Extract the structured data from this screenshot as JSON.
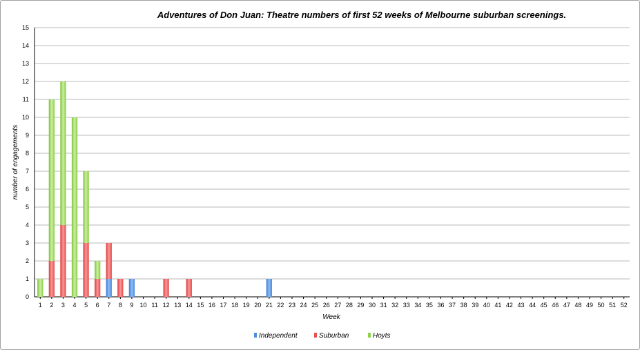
{
  "chart_data": {
    "type": "bar",
    "stacked": true,
    "title": "Adventures of Don Juan: Theatre numbers of first 52 weeks of Melbourne suburban screenings.",
    "xlabel": "Week",
    "ylabel": "number of engagements",
    "ylim": [
      0,
      15
    ],
    "yticks": [
      0,
      1,
      2,
      3,
      4,
      5,
      6,
      7,
      8,
      9,
      10,
      11,
      12,
      13,
      14,
      15
    ],
    "grid": true,
    "legend_position": "bottom",
    "categories": [
      "1",
      "2",
      "3",
      "4",
      "5",
      "6",
      "7",
      "8",
      "9",
      "10",
      "11",
      "12",
      "13",
      "14",
      "15",
      "16",
      "17",
      "18",
      "19",
      "20",
      "21",
      "22",
      "23",
      "24",
      "25",
      "26",
      "27",
      "28",
      "29",
      "30",
      "31",
      "32",
      "33",
      "34",
      "35",
      "36",
      "37",
      "38",
      "39",
      "40",
      "41",
      "42",
      "43",
      "44",
      "45",
      "46",
      "47",
      "48",
      "49",
      "50",
      "51",
      "52"
    ],
    "series": [
      {
        "name": "Independent",
        "color": "#4f8fe0",
        "values": [
          0,
          0,
          0,
          0,
          0,
          0,
          1,
          0,
          1,
          0,
          0,
          0,
          0,
          0,
          0,
          0,
          0,
          0,
          0,
          0,
          1,
          0,
          0,
          0,
          0,
          0,
          0,
          0,
          0,
          0,
          0,
          0,
          0,
          0,
          0,
          0,
          0,
          0,
          0,
          0,
          0,
          0,
          0,
          0,
          0,
          0,
          0,
          0,
          0,
          0,
          0,
          0
        ]
      },
      {
        "name": "Suburban",
        "color": "#e85050",
        "values": [
          0,
          2,
          4,
          0,
          3,
          1,
          2,
          1,
          0,
          0,
          0,
          1,
          0,
          1,
          0,
          0,
          0,
          0,
          0,
          0,
          0,
          0,
          0,
          0,
          0,
          0,
          0,
          0,
          0,
          0,
          0,
          0,
          0,
          0,
          0,
          0,
          0,
          0,
          0,
          0,
          0,
          0,
          0,
          0,
          0,
          0,
          0,
          0,
          0,
          0,
          0,
          0
        ]
      },
      {
        "name": "Hoyts",
        "color": "#8fd24a",
        "values": [
          1,
          9,
          8,
          10,
          4,
          1,
          0,
          0,
          0,
          0,
          0,
          0,
          0,
          0,
          0,
          0,
          0,
          0,
          0,
          0,
          0,
          0,
          0,
          0,
          0,
          0,
          0,
          0,
          0,
          0,
          0,
          0,
          0,
          0,
          0,
          0,
          0,
          0,
          0,
          0,
          0,
          0,
          0,
          0,
          0,
          0,
          0,
          0,
          0,
          0,
          0,
          0
        ]
      }
    ]
  }
}
